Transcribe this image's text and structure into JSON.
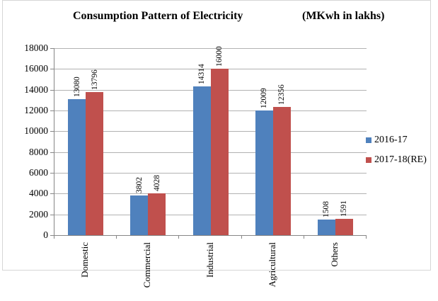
{
  "title": "Consumption Pattern of Electricity",
  "units_label": "(MKwh in lakhs)",
  "colors": {
    "series1": "#4F81BD",
    "series2": "#C0504D",
    "gridline": "#b2b2b2",
    "axis": "#868686",
    "frame": "#d6d6d6",
    "text": "#000000"
  },
  "chart_data": {
    "type": "bar",
    "title": "Consumption Pattern of Electricity",
    "subtitle": "(MKwh in lakhs)",
    "categories": [
      "Domestic",
      "Commercial",
      "Industrial",
      "Agricultural",
      "Others"
    ],
    "series": [
      {
        "name": "2016-17",
        "color": "#4F81BD",
        "values": [
          13080,
          3802,
          14314,
          12009,
          1508
        ]
      },
      {
        "name": "2017-18(RE)",
        "color": "#C0504D",
        "values": [
          13796,
          4028,
          16000,
          12356,
          1591
        ]
      }
    ],
    "xlabel": "",
    "ylabel": "",
    "ylim": [
      0,
      18000
    ],
    "yticks": [
      0,
      2000,
      4000,
      6000,
      8000,
      10000,
      12000,
      14000,
      16000,
      18000
    ],
    "grid": true,
    "legend_position": "right",
    "bar_value_labels_rotated": true,
    "category_labels_rotated": true
  }
}
